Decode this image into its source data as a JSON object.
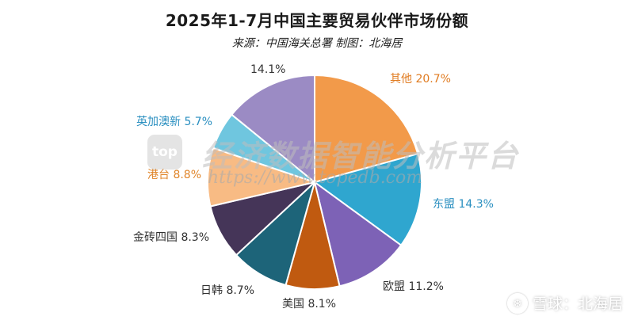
{
  "chart_data": {
    "type": "pie",
    "title": "2025年1-7月中国主要贸易伙伴市场份额",
    "subtitle": "来源：中国海关总署 制图：北海居",
    "slices": [
      {
        "name": "其他",
        "value": 20.7,
        "label": "其他 20.7%",
        "color": "#f29a4a",
        "label_color": "#e07b20"
      },
      {
        "name": "东盟",
        "value": 14.3,
        "label": "东盟 14.3%",
        "color": "#2fa6cf",
        "label_color": "#2a8fc0"
      },
      {
        "name": "欧盟",
        "value": 11.2,
        "label": "欧盟 11.2%",
        "color": "#7d62b6",
        "label_color": "#333333"
      },
      {
        "name": "美国",
        "value": 8.1,
        "label": "美国 8.1%",
        "color": "#c05a10",
        "label_color": "#333333"
      },
      {
        "name": "日韩",
        "value": 8.7,
        "label": "日韩 8.7%",
        "color": "#1d6479",
        "label_color": "#333333"
      },
      {
        "name": "金砖四国",
        "value": 8.3,
        "label": "金砖四国 8.3%",
        "color": "#453558",
        "label_color": "#333333"
      },
      {
        "name": "港台",
        "value": 8.8,
        "label": "港台 8.8%",
        "color": "#f8bb84",
        "label_color": "#e0852a"
      },
      {
        "name": "英加澳新",
        "value": 5.7,
        "label": "英加澳新 5.7%",
        "color": "#6fc6df",
        "label_color": "#2a8fc0"
      },
      {
        "name": "",
        "value": 14.1,
        "label": "14.1%",
        "color": "#9b8bc4",
        "label_color": "#333333"
      }
    ]
  },
  "watermark": {
    "logo": "top",
    "text": "经济数据智能分析平台",
    "url": "https://www.topedb.com"
  },
  "footer": {
    "icon": "snowball-icon",
    "text": "雪球：北海居"
  }
}
